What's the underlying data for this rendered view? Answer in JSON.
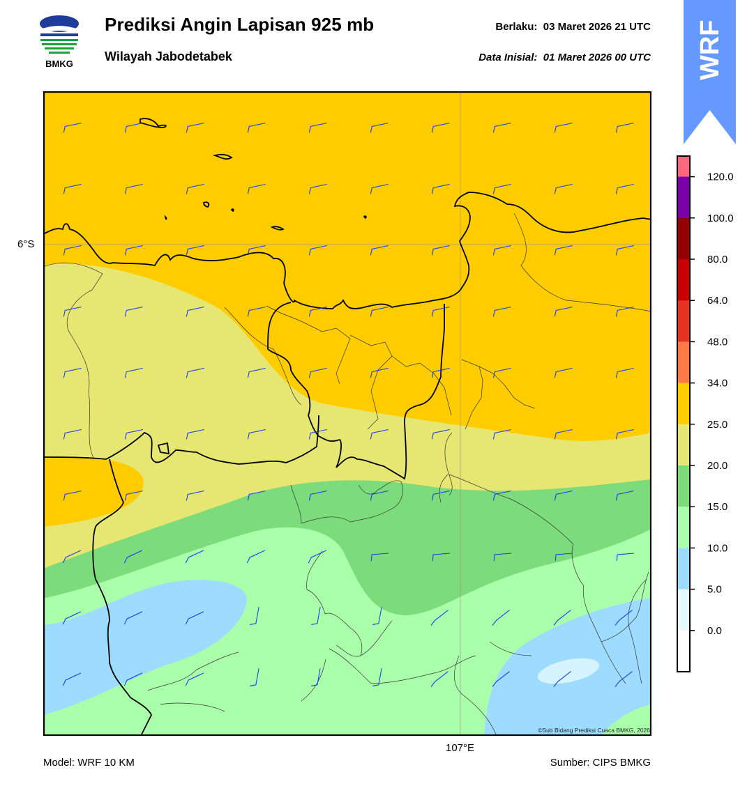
{
  "header": {
    "logo_text": "BMKG",
    "title": "Prediksi Angin Lapisan 925 mb",
    "subtitle": "Wilayah Jabodetabek",
    "valid_label": "Berlaku:",
    "valid_time": "03 Maret 2026 21 UTC",
    "init_label": "Data Inisial:",
    "init_time": "01 Maret 2026 00 UTC",
    "model_tab": "WRF"
  },
  "map": {
    "lat_label": "6°S",
    "lon_label": "107°E",
    "copyright": "©Sub Bidang Prediksi Cuaca BMKG, 2026",
    "colors": {
      "ocean_fill": "#ffcc00",
      "band_20_25": "#e6e673",
      "band_15_20": "#7cdc7c",
      "band_10_15": "#aaffaa",
      "band_5_10": "#9ddcff",
      "band_0_5": "#d6f4ff",
      "barb_color": "#1a3cf0"
    }
  },
  "colorbar": {
    "ticks": [
      "120.0",
      "100.0",
      "80.0",
      "64.0",
      "48.0",
      "34.0",
      "25.0",
      "20.0",
      "15.0",
      "10.0",
      "5.0",
      "0.0"
    ],
    "colors": [
      "#ff6680",
      "#7a00aa",
      "#960000",
      "#c80000",
      "#e6321e",
      "#ff7a46",
      "#ffcc00",
      "#e6e673",
      "#7cdc7c",
      "#aaffaa",
      "#9ddcff",
      "#e6f9ff",
      "#ffffff"
    ]
  },
  "footer": {
    "model": "Model: WRF 10 KM",
    "source": "Sumber: CIPS BMKG"
  }
}
